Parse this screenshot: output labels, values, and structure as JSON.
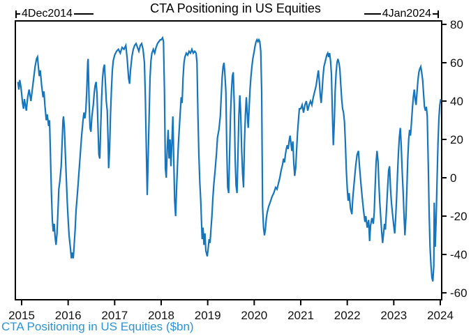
{
  "figure": {
    "title": "CTA Positioning in US Equities",
    "footer": "CTA Positioning in US Equities ($bn)",
    "start_annotation": "4Dec2014",
    "end_annotation": "4Jan2024"
  },
  "colors": {
    "line": "#1576bd",
    "footer_text": "#2b94d8",
    "axis": "#000000",
    "tick_label": "#111111"
  },
  "chart_data": {
    "type": "line",
    "title": "CTA Positioning in US Equities",
    "series_label": "CTA Positioning in US Equities ($bn)",
    "date_range": {
      "start": "4Dec2014",
      "end": "4Jan2024"
    },
    "xlabel": "",
    "ylabel": "",
    "grid": false,
    "legend_position": "bottom-left",
    "x_unit": "decimal_year",
    "y_unit": "$bn",
    "xlim": [
      2014.865,
      2024.03
    ],
    "ylim": [
      -63.6,
      81.8
    ],
    "x_ticks": [
      2015,
      2016,
      2017,
      2018,
      2019,
      2020,
      2021,
      2022,
      2023,
      2024
    ],
    "x_tick_labels": [
      "2015",
      "2016",
      "2017",
      "2018",
      "2019",
      "2020",
      "2021",
      "2022",
      "2023",
      "2024"
    ],
    "y_ticks": [
      -60,
      -40,
      -20,
      0,
      20,
      40,
      60,
      80
    ],
    "y_tick_labels": [
      "-60",
      "-40",
      "-20",
      "0",
      "20",
      "40",
      "60",
      "80"
    ],
    "points": [
      [
        2014.92,
        50
      ],
      [
        2014.94,
        46
      ],
      [
        2014.96,
        51
      ],
      [
        2014.98,
        48
      ],
      [
        2015.0,
        44
      ],
      [
        2015.02,
        39
      ],
      [
        2015.04,
        36
      ],
      [
        2015.06,
        41
      ],
      [
        2015.08,
        38
      ],
      [
        2015.1,
        35
      ],
      [
        2015.13,
        42
      ],
      [
        2015.16,
        46
      ],
      [
        2015.18,
        43
      ],
      [
        2015.2,
        40
      ],
      [
        2015.23,
        46
      ],
      [
        2015.26,
        52
      ],
      [
        2015.29,
        58
      ],
      [
        2015.32,
        62
      ],
      [
        2015.34,
        63
      ],
      [
        2015.36,
        58
      ],
      [
        2015.38,
        53
      ],
      [
        2015.4,
        56
      ],
      [
        2015.43,
        48
      ],
      [
        2015.46,
        42
      ],
      [
        2015.48,
        45
      ],
      [
        2015.5,
        38
      ],
      [
        2015.53,
        30
      ],
      [
        2015.55,
        33
      ],
      [
        2015.58,
        27
      ],
      [
        2015.6,
        30
      ],
      [
        2015.62,
        12
      ],
      [
        2015.64,
        -8
      ],
      [
        2015.66,
        -22
      ],
      [
        2015.68,
        -28
      ],
      [
        2015.7,
        -24
      ],
      [
        2015.72,
        -31
      ],
      [
        2015.74,
        -35
      ],
      [
        2015.76,
        -29
      ],
      [
        2015.78,
        -18
      ],
      [
        2015.8,
        -6
      ],
      [
        2015.82,
        -2
      ],
      [
        2015.85,
        6
      ],
      [
        2015.87,
        18
      ],
      [
        2015.89,
        30
      ],
      [
        2015.9,
        32
      ],
      [
        2015.92,
        26
      ],
      [
        2015.94,
        12
      ],
      [
        2015.96,
        0
      ],
      [
        2015.98,
        -12
      ],
      [
        2016.0,
        -22
      ],
      [
        2016.02,
        -30
      ],
      [
        2016.05,
        -37
      ],
      [
        2016.07,
        -42
      ],
      [
        2016.09,
        -39
      ],
      [
        2016.11,
        -42
      ],
      [
        2016.13,
        -35
      ],
      [
        2016.15,
        -27
      ],
      [
        2016.17,
        -17
      ],
      [
        2016.2,
        -8
      ],
      [
        2016.23,
        2
      ],
      [
        2016.26,
        12
      ],
      [
        2016.29,
        22
      ],
      [
        2016.32,
        30
      ],
      [
        2016.34,
        34
      ],
      [
        2016.36,
        31
      ],
      [
        2016.38,
        35
      ],
      [
        2016.4,
        45
      ],
      [
        2016.42,
        60
      ],
      [
        2016.43,
        62
      ],
      [
        2016.45,
        40
      ],
      [
        2016.47,
        26
      ],
      [
        2016.49,
        24
      ],
      [
        2016.51,
        32
      ],
      [
        2016.54,
        38
      ],
      [
        2016.56,
        44
      ],
      [
        2016.58,
        48
      ],
      [
        2016.6,
        50
      ],
      [
        2016.62,
        44
      ],
      [
        2016.64,
        28
      ],
      [
        2016.66,
        12
      ],
      [
        2016.68,
        10
      ],
      [
        2016.7,
        26
      ],
      [
        2016.72,
        42
      ],
      [
        2016.74,
        52
      ],
      [
        2016.76,
        57
      ],
      [
        2016.78,
        59
      ],
      [
        2016.8,
        50
      ],
      [
        2016.82,
        40
      ],
      [
        2016.84,
        35
      ],
      [
        2016.86,
        18
      ],
      [
        2016.87,
        5
      ],
      [
        2016.89,
        14
      ],
      [
        2016.91,
        32
      ],
      [
        2016.93,
        46
      ],
      [
        2016.95,
        56
      ],
      [
        2016.97,
        61
      ],
      [
        2017.0,
        64
      ],
      [
        2017.04,
        66
      ],
      [
        2017.08,
        67
      ],
      [
        2017.12,
        65
      ],
      [
        2017.16,
        68
      ],
      [
        2017.2,
        67
      ],
      [
        2017.24,
        69
      ],
      [
        2017.27,
        62
      ],
      [
        2017.3,
        52
      ],
      [
        2017.32,
        49
      ],
      [
        2017.34,
        56
      ],
      [
        2017.37,
        63
      ],
      [
        2017.4,
        67
      ],
      [
        2017.43,
        69
      ],
      [
        2017.46,
        70
      ],
      [
        2017.49,
        68
      ],
      [
        2017.52,
        66
      ],
      [
        2017.55,
        69
      ],
      [
        2017.58,
        70
      ],
      [
        2017.61,
        67
      ],
      [
        2017.64,
        60
      ],
      [
        2017.66,
        42
      ],
      [
        2017.68,
        15
      ],
      [
        2017.7,
        -9
      ],
      [
        2017.72,
        10
      ],
      [
        2017.74,
        32
      ],
      [
        2017.76,
        52
      ],
      [
        2017.78,
        61
      ],
      [
        2017.8,
        65
      ],
      [
        2017.83,
        67
      ],
      [
        2017.86,
        65
      ],
      [
        2017.89,
        68
      ],
      [
        2017.92,
        70
      ],
      [
        2017.95,
        71
      ],
      [
        2017.98,
        72
      ],
      [
        2018.0,
        72
      ],
      [
        2018.03,
        73
      ],
      [
        2018.05,
        71
      ],
      [
        2018.07,
        45
      ],
      [
        2018.09,
        5
      ],
      [
        2018.11,
        0
      ],
      [
        2018.13,
        16
      ],
      [
        2018.15,
        25
      ],
      [
        2018.17,
        10
      ],
      [
        2018.19,
        20
      ],
      [
        2018.21,
        6
      ],
      [
        2018.23,
        18
      ],
      [
        2018.25,
        32
      ],
      [
        2018.27,
        10
      ],
      [
        2018.29,
        -12
      ],
      [
        2018.31,
        -20
      ],
      [
        2018.33,
        -6
      ],
      [
        2018.35,
        6
      ],
      [
        2018.37,
        18
      ],
      [
        2018.39,
        26
      ],
      [
        2018.41,
        34
      ],
      [
        2018.43,
        42
      ],
      [
        2018.45,
        39
      ],
      [
        2018.47,
        52
      ],
      [
        2018.49,
        60
      ],
      [
        2018.51,
        63
      ],
      [
        2018.54,
        65
      ],
      [
        2018.57,
        64
      ],
      [
        2018.6,
        66
      ],
      [
        2018.63,
        65
      ],
      [
        2018.66,
        67
      ],
      [
        2018.69,
        65
      ],
      [
        2018.72,
        66
      ],
      [
        2018.75,
        65
      ],
      [
        2018.77,
        60
      ],
      [
        2018.79,
        32
      ],
      [
        2018.81,
        12
      ],
      [
        2018.83,
        -2
      ],
      [
        2018.85,
        -12
      ],
      [
        2018.87,
        -25
      ],
      [
        2018.88,
        -32
      ],
      [
        2018.9,
        -26
      ],
      [
        2018.92,
        -35
      ],
      [
        2018.94,
        -29
      ],
      [
        2018.96,
        -38
      ],
      [
        2018.99,
        -41
      ],
      [
        2019.01,
        -37
      ],
      [
        2019.03,
        -32
      ],
      [
        2019.05,
        -34
      ],
      [
        2019.07,
        -27
      ],
      [
        2019.09,
        -20
      ],
      [
        2019.11,
        -11
      ],
      [
        2019.13,
        -4
      ],
      [
        2019.16,
        4
      ],
      [
        2019.19,
        13
      ],
      [
        2019.21,
        21
      ],
      [
        2019.24,
        25
      ],
      [
        2019.27,
        32
      ],
      [
        2019.29,
        42
      ],
      [
        2019.31,
        52
      ],
      [
        2019.33,
        58
      ],
      [
        2019.35,
        60
      ],
      [
        2019.37,
        54
      ],
      [
        2019.39,
        45
      ],
      [
        2019.41,
        15
      ],
      [
        2019.43,
        -5
      ],
      [
        2019.45,
        -8
      ],
      [
        2019.47,
        12
      ],
      [
        2019.49,
        32
      ],
      [
        2019.51,
        45
      ],
      [
        2019.53,
        53
      ],
      [
        2019.55,
        55
      ],
      [
        2019.57,
        38
      ],
      [
        2019.59,
        10
      ],
      [
        2019.61,
        -4
      ],
      [
        2019.63,
        -8
      ],
      [
        2019.65,
        12
      ],
      [
        2019.67,
        32
      ],
      [
        2019.69,
        43
      ],
      [
        2019.71,
        33
      ],
      [
        2019.73,
        15
      ],
      [
        2019.75,
        2
      ],
      [
        2019.77,
        -5
      ],
      [
        2019.79,
        18
      ],
      [
        2019.81,
        33
      ],
      [
        2019.83,
        42
      ],
      [
        2019.85,
        34
      ],
      [
        2019.87,
        26
      ],
      [
        2019.89,
        36
      ],
      [
        2019.91,
        46
      ],
      [
        2019.93,
        53
      ],
      [
        2019.95,
        58
      ],
      [
        2019.97,
        62
      ],
      [
        2020.0,
        66
      ],
      [
        2020.02,
        69
      ],
      [
        2020.04,
        71
      ],
      [
        2020.06,
        72
      ],
      [
        2020.08,
        71
      ],
      [
        2020.1,
        72
      ],
      [
        2020.12,
        71
      ],
      [
        2020.14,
        66
      ],
      [
        2020.16,
        45
      ],
      [
        2020.17,
        12
      ],
      [
        2020.18,
        -15
      ],
      [
        2020.2,
        -26
      ],
      [
        2020.22,
        -30
      ],
      [
        2020.24,
        -27
      ],
      [
        2020.26,
        -21
      ],
      [
        2020.28,
        -18
      ],
      [
        2020.31,
        -15
      ],
      [
        2020.34,
        -13
      ],
      [
        2020.38,
        -10
      ],
      [
        2020.42,
        -8
      ],
      [
        2020.46,
        -5
      ],
      [
        2020.49,
        -6
      ],
      [
        2020.52,
        -3
      ],
      [
        2020.55,
        0
      ],
      [
        2020.58,
        4
      ],
      [
        2020.61,
        7
      ],
      [
        2020.63,
        10
      ],
      [
        2020.65,
        8
      ],
      [
        2020.67,
        12
      ],
      [
        2020.69,
        15
      ],
      [
        2020.71,
        17
      ],
      [
        2020.73,
        15
      ],
      [
        2020.75,
        19
      ],
      [
        2020.77,
        22
      ],
      [
        2020.79,
        18
      ],
      [
        2020.81,
        14
      ],
      [
        2020.83,
        19
      ],
      [
        2020.85,
        8
      ],
      [
        2020.87,
        1
      ],
      [
        2020.89,
        5
      ],
      [
        2020.91,
        14
      ],
      [
        2020.93,
        23
      ],
      [
        2020.95,
        30
      ],
      [
        2020.97,
        36
      ],
      [
        2021.0,
        36
      ],
      [
        2021.03,
        38
      ],
      [
        2021.06,
        34
      ],
      [
        2021.09,
        38
      ],
      [
        2021.12,
        40
      ],
      [
        2021.15,
        35
      ],
      [
        2021.18,
        38
      ],
      [
        2021.21,
        40
      ],
      [
        2021.24,
        38
      ],
      [
        2021.27,
        42
      ],
      [
        2021.3,
        45
      ],
      [
        2021.33,
        48
      ],
      [
        2021.36,
        53
      ],
      [
        2021.38,
        56
      ],
      [
        2021.4,
        50
      ],
      [
        2021.42,
        43
      ],
      [
        2021.44,
        39
      ],
      [
        2021.46,
        46
      ],
      [
        2021.48,
        53
      ],
      [
        2021.5,
        58
      ],
      [
        2021.53,
        61
      ],
      [
        2021.56,
        64
      ],
      [
        2021.58,
        65
      ],
      [
        2021.6,
        63
      ],
      [
        2021.62,
        65
      ],
      [
        2021.64,
        61
      ],
      [
        2021.66,
        54
      ],
      [
        2021.68,
        34
      ],
      [
        2021.7,
        17
      ],
      [
        2021.72,
        28
      ],
      [
        2021.74,
        45
      ],
      [
        2021.76,
        55
      ],
      [
        2021.78,
        60
      ],
      [
        2021.8,
        62
      ],
      [
        2021.82,
        60
      ],
      [
        2021.84,
        57
      ],
      [
        2021.86,
        49
      ],
      [
        2021.88,
        41
      ],
      [
        2021.9,
        36
      ],
      [
        2021.92,
        34
      ],
      [
        2021.94,
        29
      ],
      [
        2021.96,
        18
      ],
      [
        2021.98,
        4
      ],
      [
        2022.0,
        -6
      ],
      [
        2022.02,
        -12
      ],
      [
        2022.04,
        -8
      ],
      [
        2022.07,
        -16
      ],
      [
        2022.1,
        -19
      ],
      [
        2022.12,
        -10
      ],
      [
        2022.15,
        -2
      ],
      [
        2022.18,
        6
      ],
      [
        2022.21,
        12
      ],
      [
        2022.24,
        14
      ],
      [
        2022.26,
        7
      ],
      [
        2022.29,
        -2
      ],
      [
        2022.32,
        -10
      ],
      [
        2022.35,
        -17
      ],
      [
        2022.38,
        -23
      ],
      [
        2022.4,
        -20
      ],
      [
        2022.43,
        -26
      ],
      [
        2022.46,
        -22
      ],
      [
        2022.48,
        -33
      ],
      [
        2022.5,
        -25
      ],
      [
        2022.53,
        -21
      ],
      [
        2022.56,
        -24
      ],
      [
        2022.58,
        -18
      ],
      [
        2022.6,
        -4
      ],
      [
        2022.62,
        8
      ],
      [
        2022.64,
        14
      ],
      [
        2022.66,
        9
      ],
      [
        2022.68,
        -3
      ],
      [
        2022.7,
        -13
      ],
      [
        2022.72,
        -21
      ],
      [
        2022.74,
        -28
      ],
      [
        2022.76,
        -34
      ],
      [
        2022.78,
        -29
      ],
      [
        2022.8,
        -24
      ],
      [
        2022.82,
        -27
      ],
      [
        2022.85,
        -14
      ],
      [
        2022.87,
        -4
      ],
      [
        2022.89,
        4
      ],
      [
        2022.91,
        6
      ],
      [
        2022.93,
        -6
      ],
      [
        2022.95,
        -13
      ],
      [
        2022.97,
        -18
      ],
      [
        2023.0,
        -25
      ],
      [
        2023.02,
        -29
      ],
      [
        2023.04,
        -21
      ],
      [
        2023.06,
        -11
      ],
      [
        2023.08,
        2
      ],
      [
        2023.1,
        13
      ],
      [
        2023.12,
        21
      ],
      [
        2023.14,
        26
      ],
      [
        2023.16,
        17
      ],
      [
        2023.18,
        4
      ],
      [
        2023.2,
        -7
      ],
      [
        2023.22,
        -19
      ],
      [
        2023.24,
        -30
      ],
      [
        2023.26,
        -21
      ],
      [
        2023.28,
        -7
      ],
      [
        2023.3,
        9
      ],
      [
        2023.32,
        20
      ],
      [
        2023.34,
        25
      ],
      [
        2023.36,
        22
      ],
      [
        2023.38,
        29
      ],
      [
        2023.4,
        36
      ],
      [
        2023.42,
        42
      ],
      [
        2023.44,
        46
      ],
      [
        2023.46,
        41
      ],
      [
        2023.48,
        38
      ],
      [
        2023.5,
        45
      ],
      [
        2023.52,
        51
      ],
      [
        2023.54,
        55
      ],
      [
        2023.56,
        57
      ],
      [
        2023.58,
        58
      ],
      [
        2023.6,
        55
      ],
      [
        2023.62,
        51
      ],
      [
        2023.64,
        44
      ],
      [
        2023.66,
        37
      ],
      [
        2023.68,
        35
      ],
      [
        2023.7,
        37
      ],
      [
        2023.72,
        32
      ],
      [
        2023.74,
        8
      ],
      [
        2023.76,
        -18
      ],
      [
        2023.78,
        -36
      ],
      [
        2023.8,
        -46
      ],
      [
        2023.82,
        -52
      ],
      [
        2023.84,
        -54
      ],
      [
        2023.86,
        -46
      ],
      [
        2023.87,
        -13
      ],
      [
        2023.89,
        -36
      ],
      [
        2023.91,
        -22
      ],
      [
        2023.93,
        -2
      ],
      [
        2023.95,
        18
      ],
      [
        2023.97,
        31
      ],
      [
        2023.99,
        38
      ],
      [
        2024.01,
        41
      ]
    ]
  }
}
